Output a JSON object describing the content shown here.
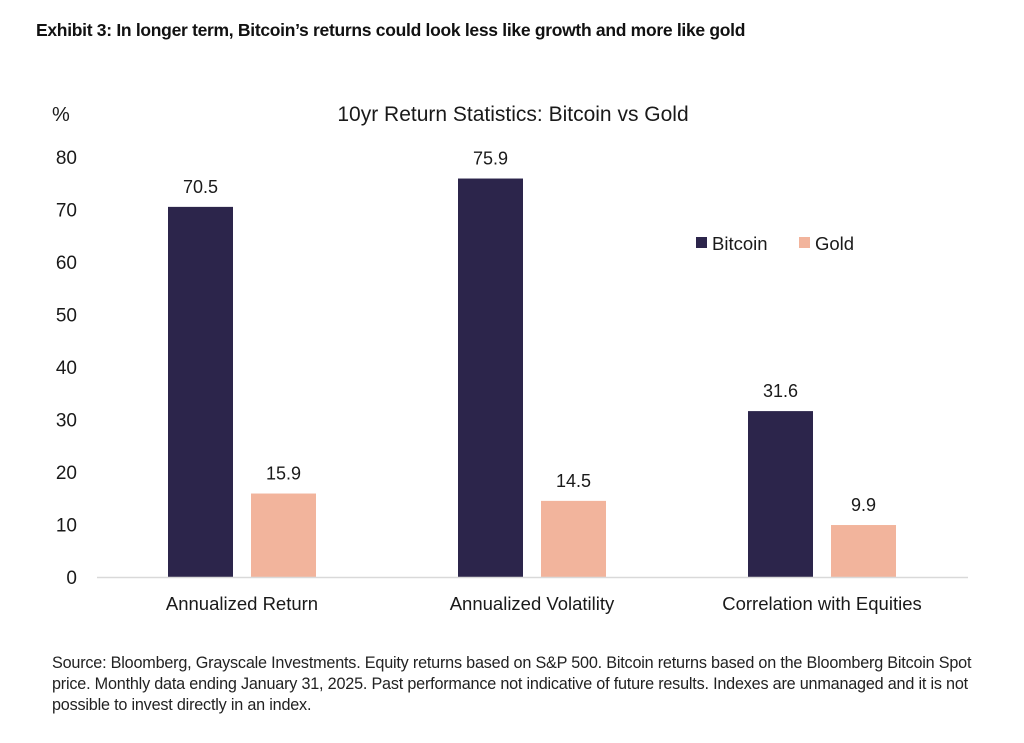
{
  "exhibit_title": "Exhibit 3: In longer term, Bitcoin’s returns could look less like growth and more like gold",
  "source_note": "Source: Bloomberg, Grayscale Investments. Equity returns based on S&P 500. Bitcoin returns based on the Bloomberg Bitcoin Spot price. Monthly data ending January 31, 2025. Past performance not indicative of future results. Indexes are unmanaged and it is not possible to invest directly in an index.",
  "colors": {
    "bitcoin": "#2c254b",
    "gold": "#f2b49c",
    "axis": "#d9d9d9"
  },
  "chart_data": {
    "type": "bar",
    "title": "10yr Return Statistics: Bitcoin vs Gold",
    "ylabel": "%",
    "xlabel": "",
    "ylim": [
      0,
      80
    ],
    "yticks": [
      0,
      10,
      20,
      30,
      40,
      50,
      60,
      70,
      80
    ],
    "grid": false,
    "legend": "right",
    "categories": [
      "Annualized Return",
      "Annualized Volatility",
      "Correlation with Equities"
    ],
    "series": [
      {
        "name": "Bitcoin",
        "values": [
          70.5,
          75.9,
          31.6
        ]
      },
      {
        "name": "Gold",
        "values": [
          15.9,
          14.5,
          9.9
        ]
      }
    ]
  }
}
